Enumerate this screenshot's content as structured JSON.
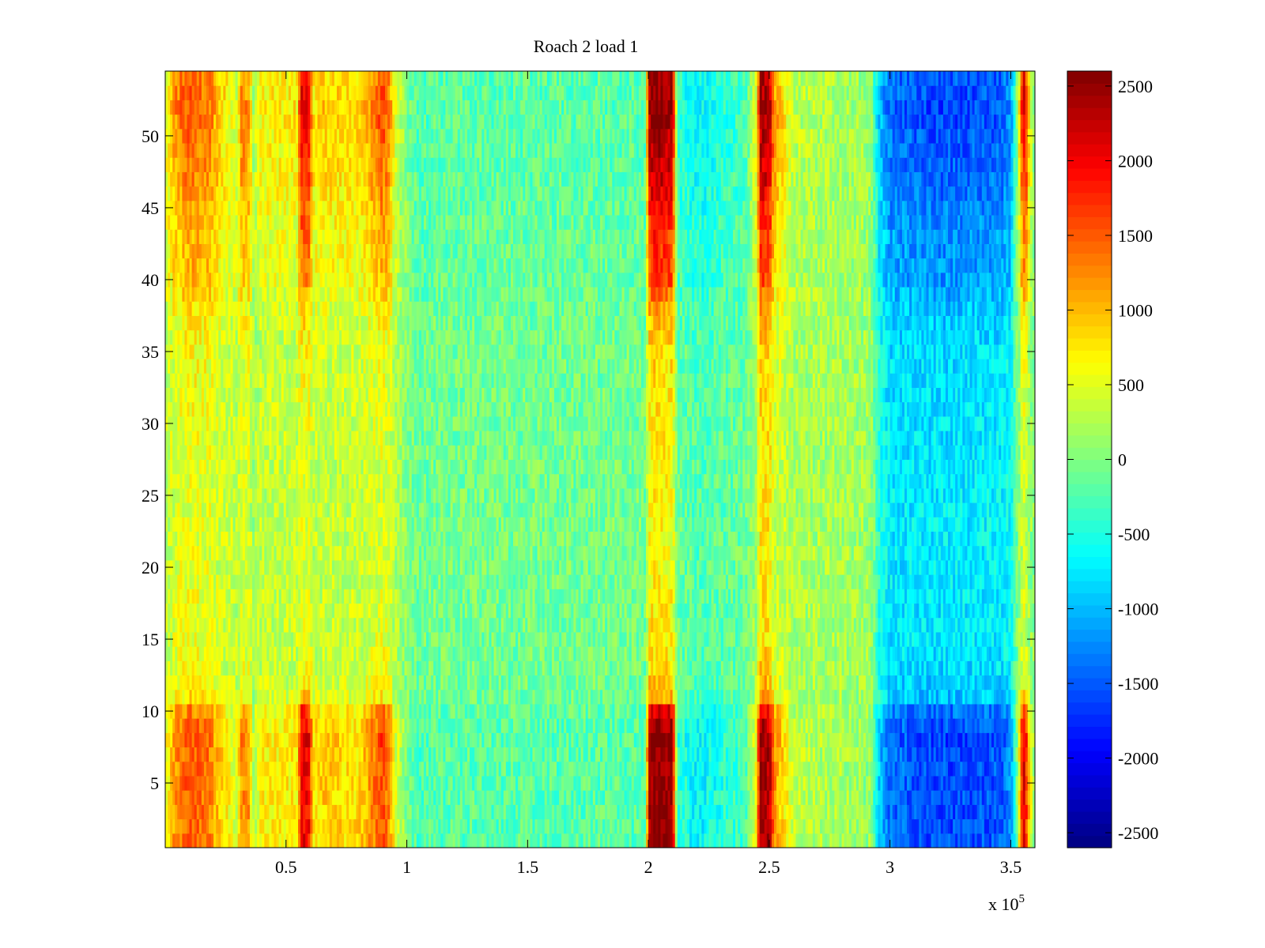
{
  "chart_data": {
    "type": "heatmap",
    "title": "Roach 2 load 1",
    "xlabel": "",
    "ylabel": "",
    "x_exponent_label": "x 10",
    "x_exponent_power": "5",
    "xlim": [
      0,
      3.6
    ],
    "ylim": [
      0.5,
      54.5
    ],
    "x_ticks": [
      0.5,
      1,
      1.5,
      2,
      2.5,
      3,
      3.5
    ],
    "x_tick_labels": [
      "0.5",
      "1",
      "1.5",
      "2",
      "2.5",
      "3",
      "3.5"
    ],
    "y_ticks": [
      5,
      10,
      15,
      20,
      25,
      30,
      35,
      40,
      45,
      50
    ],
    "y_tick_labels": [
      "5",
      "10",
      "15",
      "20",
      "25",
      "30",
      "35",
      "40",
      "45",
      "50"
    ],
    "rows": 54,
    "colorbar": {
      "colormap": "jet",
      "clim": [
        -2600,
        2600
      ],
      "ticks": [
        2500,
        2000,
        1500,
        1000,
        500,
        0,
        -500,
        -1000,
        -1500,
        -2000,
        -2500
      ],
      "tick_labels": [
        "2500",
        "2000",
        "1500",
        "1000",
        "500",
        "0",
        "-500",
        "-1000",
        "-1500",
        "-2000",
        "-2500"
      ]
    },
    "column_profile": {
      "x_knots": [
        0,
        0.04,
        0.1,
        0.19,
        0.2,
        0.3,
        0.31,
        0.35,
        0.36,
        0.4,
        0.55,
        0.56,
        0.6,
        0.61,
        0.62,
        0.65,
        0.8,
        0.85,
        0.9,
        0.93,
        0.95,
        1.0,
        1.05,
        1.1,
        1.5,
        1.9,
        1.99,
        2.0,
        2.02,
        2.1,
        2.12,
        2.2,
        2.3,
        2.4,
        2.45,
        2.46,
        2.5,
        2.52,
        2.56,
        2.6,
        2.8,
        2.92,
        2.96,
        3.0,
        3.2,
        3.46,
        3.5,
        3.53,
        3.55,
        3.56,
        3.58,
        3.6
      ],
      "outer_rows_value": [
        500,
        1200,
        1500,
        1300,
        1100,
        400,
        1200,
        1200,
        200,
        700,
        700,
        2100,
        1900,
        700,
        800,
        900,
        800,
        1200,
        1600,
        1200,
        500,
        0,
        -300,
        -200,
        -200,
        -200,
        -200,
        2300,
        2600,
        2400,
        -400,
        -700,
        -500,
        -300,
        600,
        2400,
        2400,
        1200,
        800,
        300,
        200,
        100,
        -1000,
        -1400,
        -1600,
        -1500,
        -1200,
        200,
        2000,
        2000,
        600,
        0
      ],
      "middle_rows_value": [
        300,
        400,
        500,
        450,
        400,
        300,
        400,
        400,
        150,
        300,
        300,
        450,
        420,
        300,
        300,
        300,
        300,
        350,
        400,
        350,
        200,
        50,
        -100,
        -50,
        -50,
        -50,
        -50,
        500,
        600,
        500,
        -100,
        -200,
        -150,
        -100,
        150,
        650,
        650,
        350,
        300,
        200,
        200,
        150,
        -500,
        -700,
        -700,
        -650,
        -550,
        0,
        300,
        300,
        100,
        0
      ]
    },
    "row_intensity_profile": {
      "rows": [
        1,
        7,
        8,
        9,
        10,
        11,
        13,
        15,
        20,
        25,
        30,
        35,
        38,
        40,
        43,
        45,
        47,
        50,
        52,
        54
      ],
      "weight": [
        1.0,
        1.0,
        1.05,
        0.95,
        0.8,
        0.3,
        0.15,
        0.1,
        0.05,
        0.05,
        0.1,
        0.15,
        0.3,
        0.55,
        0.6,
        0.7,
        0.85,
        0.95,
        1.05,
        0.95
      ]
    },
    "noise_amplitude": 300
  }
}
